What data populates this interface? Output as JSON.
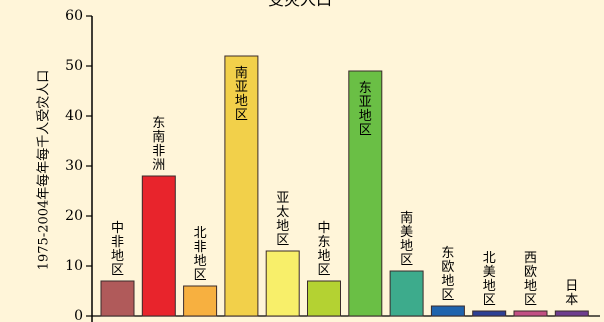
{
  "chart_data": {
    "type": "bar",
    "title": "受灾人口",
    "ylabel": "1975-2004年每年每千人受灾人口",
    "xlabel": "",
    "ylim": [
      0,
      60
    ],
    "yticks": [
      0,
      10,
      20,
      30,
      40,
      50,
      60
    ],
    "grid": false,
    "categories": [
      "中非地区",
      "东南非洲",
      "北非地区",
      "南亚地区",
      "亚太地区",
      "中东地区",
      "东亚地区",
      "南美地区",
      "东欧地区",
      "北美地区",
      "西欧地区",
      "日本"
    ],
    "values": [
      7,
      28,
      6,
      52,
      13,
      7,
      49,
      9,
      2,
      1,
      1,
      1
    ],
    "colors": [
      "#b05a5a",
      "#e8242c",
      "#f7b040",
      "#f2d04a",
      "#f8ef6a",
      "#b4d232",
      "#6abf45",
      "#3dab8c",
      "#1f63ad",
      "#2d3f94",
      "#c24f84",
      "#6e3d8f"
    ]
  }
}
